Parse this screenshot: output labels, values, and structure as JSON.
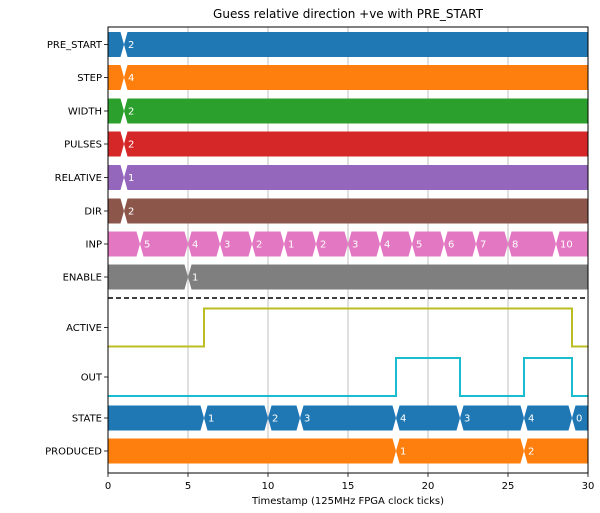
{
  "chart_data": {
    "type": "timing-diagram",
    "title": "Guess relative direction +ve with PRE_START",
    "xlabel": "Timestamp (125MHz FPGA clock ticks)",
    "ylabel": "",
    "xlim": [
      0,
      30
    ],
    "xticks": [
      0,
      5,
      10,
      15,
      20,
      25,
      30
    ],
    "grid": "vertical",
    "separator_after": "ENABLE",
    "signals": [
      {
        "name": "PRE_START",
        "kind": "bus",
        "color": "#1f77b4",
        "segments": [
          {
            "start": 1,
            "label": "2"
          }
        ]
      },
      {
        "name": "STEP",
        "kind": "bus",
        "color": "#ff7f0e",
        "segments": [
          {
            "start": 1,
            "label": "4"
          }
        ]
      },
      {
        "name": "WIDTH",
        "kind": "bus",
        "color": "#2ca02c",
        "segments": [
          {
            "start": 1,
            "label": "2"
          }
        ]
      },
      {
        "name": "PULSES",
        "kind": "bus",
        "color": "#d62728",
        "segments": [
          {
            "start": 1,
            "label": "2"
          }
        ]
      },
      {
        "name": "RELATIVE",
        "kind": "bus",
        "color": "#9467bd",
        "segments": [
          {
            "start": 1,
            "label": "1"
          }
        ]
      },
      {
        "name": "DIR",
        "kind": "bus",
        "color": "#8c564b",
        "segments": [
          {
            "start": 1,
            "label": "2"
          }
        ]
      },
      {
        "name": "INP",
        "kind": "bus",
        "color": "#e377c2",
        "segments": [
          {
            "start": 2,
            "label": "5"
          },
          {
            "start": 5,
            "label": "4"
          },
          {
            "start": 7,
            "label": "3"
          },
          {
            "start": 9,
            "label": "2"
          },
          {
            "start": 11,
            "label": "1"
          },
          {
            "start": 13,
            "label": "2"
          },
          {
            "start": 15,
            "label": "3"
          },
          {
            "start": 17,
            "label": "4"
          },
          {
            "start": 19,
            "label": "5"
          },
          {
            "start": 21,
            "label": "6"
          },
          {
            "start": 23,
            "label": "7"
          },
          {
            "start": 25,
            "label": "8"
          },
          {
            "start": 28,
            "label": "10"
          }
        ]
      },
      {
        "name": "ENABLE",
        "kind": "bus",
        "color": "#7f7f7f",
        "segments": [
          {
            "start": 5,
            "label": "1"
          }
        ]
      },
      {
        "name": "ACTIVE",
        "kind": "bit",
        "color": "#bcbd22",
        "edges": [
          [
            0,
            0
          ],
          [
            6,
            1
          ],
          [
            29,
            0
          ]
        ]
      },
      {
        "name": "OUT",
        "kind": "bit",
        "color": "#17becf",
        "edges": [
          [
            0,
            0
          ],
          [
            18,
            1
          ],
          [
            22,
            0
          ],
          [
            26,
            1
          ],
          [
            29,
            0
          ]
        ]
      },
      {
        "name": "STATE",
        "kind": "bus",
        "color": "#1f77b4",
        "segments": [
          {
            "start": 6,
            "label": "1"
          },
          {
            "start": 10,
            "label": "2"
          },
          {
            "start": 12,
            "label": "3"
          },
          {
            "start": 18,
            "label": "4"
          },
          {
            "start": 22,
            "label": "3"
          },
          {
            "start": 26,
            "label": "4"
          },
          {
            "start": 29,
            "label": "0"
          }
        ]
      },
      {
        "name": "PRODUCED",
        "kind": "bus",
        "color": "#ff7f0e",
        "segments": [
          {
            "start": 18,
            "label": "1"
          },
          {
            "start": 26,
            "label": "2"
          }
        ]
      }
    ]
  }
}
